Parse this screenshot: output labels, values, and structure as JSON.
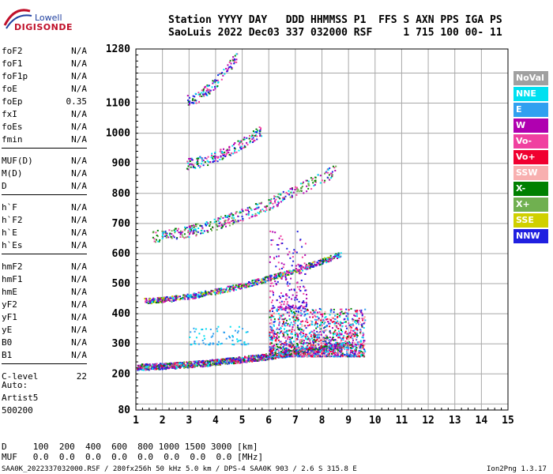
{
  "logo": {
    "top": "Lowell",
    "bottom": "DIGISONDE"
  },
  "header": {
    "line1": "Station YYYY DAY   DDD HHMMSS P1  FFS S AXN PPS IGA PS",
    "line2": "SaoLuis 2022 Dec03 337 032000 RSF     1 715 100 00- 11"
  },
  "params_group1": [
    {
      "label": "foF2",
      "value": "N/A"
    },
    {
      "label": "foF1",
      "value": "N/A"
    },
    {
      "label": "foF1p",
      "value": "N/A"
    },
    {
      "label": "foE",
      "value": "N/A"
    },
    {
      "label": "foEp",
      "value": "0.35"
    },
    {
      "label": "fxI",
      "value": "N/A"
    },
    {
      "label": "foEs",
      "value": "N/A"
    },
    {
      "label": "fmin",
      "value": "N/A"
    }
  ],
  "params_group2": [
    {
      "label": "MUF(D)",
      "value": "N/A"
    },
    {
      "label": "M(D)",
      "value": "N/A"
    },
    {
      "label": "D",
      "value": "N/A"
    }
  ],
  "params_group3": [
    {
      "label": "h`F",
      "value": "N/A"
    },
    {
      "label": "h`F2",
      "value": "N/A"
    },
    {
      "label": "h`E",
      "value": "N/A"
    },
    {
      "label": "h`Es",
      "value": "N/A"
    }
  ],
  "params_group4": [
    {
      "label": "hmF2",
      "value": "N/A"
    },
    {
      "label": "hmF1",
      "value": "N/A"
    },
    {
      "label": "hmE",
      "value": "N/A"
    },
    {
      "label": "yF2",
      "value": "N/A"
    },
    {
      "label": "yF1",
      "value": "N/A"
    },
    {
      "label": "yE",
      "value": "N/A"
    },
    {
      "label": "B0",
      "value": "N/A"
    },
    {
      "label": "B1",
      "value": "N/A"
    }
  ],
  "params_group5": [
    {
      "label": "C-level",
      "value": "22"
    }
  ],
  "auto": {
    "line1": "Auto:",
    "line2": "Artist5",
    "line3": "500200"
  },
  "legend": [
    {
      "label": "NoVal",
      "color": "#a0a0a0"
    },
    {
      "label": "NNE",
      "color": "#00e0f0"
    },
    {
      "label": "E",
      "color": "#30a0f0"
    },
    {
      "label": "W",
      "color": "#b000b0"
    },
    {
      "label": "Vo-",
      "color": "#f040a0"
    },
    {
      "label": "Vo+",
      "color": "#f00030"
    },
    {
      "label": "SSW",
      "color": "#f8b0b0"
    },
    {
      "label": "X-",
      "color": "#008000"
    },
    {
      "label": "X+",
      "color": "#70b050"
    },
    {
      "label": "SSE",
      "color": "#d0d000"
    },
    {
      "label": "NNW",
      "color": "#2020e0"
    }
  ],
  "bottom": {
    "d_line": "D     100  200  400  600  800 1000 1500 3000 [km]",
    "muf_line": "MUF   0.0  0.0  0.0  0.0  0.0  0.0  0.0  0.0 [MHz]"
  },
  "footer": {
    "left": "SAA0K_2022337032000.RSF / 280fx256h 50 kHz 5.0 km / DPS-4 SAA0K 903 / 2.6 S 315.8 E",
    "right": "Ion2Png 1.3.17"
  },
  "chart_data": {
    "type": "scatter",
    "xlim": [
      1,
      15
    ],
    "ylim": [
      80,
      1280
    ],
    "x_ticks": [
      1,
      2,
      3,
      4,
      5,
      6,
      7,
      8,
      9,
      10,
      11,
      12,
      13,
      14,
      15
    ],
    "y_ticks": [
      80,
      200,
      300,
      400,
      500,
      600,
      700,
      800,
      900,
      1000,
      1100,
      1280
    ],
    "grid": true,
    "legend_placement": "right",
    "traces": [
      {
        "f0": 1.0,
        "f1": 9.0,
        "h0": 225,
        "h1": 300,
        "count": 1500,
        "spread": 10,
        "colors": [
          "#2020e0",
          "#2020e0",
          "#b000b0",
          "#00e0f0",
          "#f040a0",
          "#f00030",
          "#008000",
          "#70b050"
        ]
      },
      {
        "f0": 1.3,
        "f1": 8.7,
        "h0": 445,
        "h1": 600,
        "count": 700,
        "spread": 9,
        "colors": [
          "#2020e0",
          "#b000b0",
          "#f040a0",
          "#d0d000",
          "#008000",
          "#00e0f0"
        ]
      },
      {
        "f0": 1.6,
        "f1": 8.5,
        "h0": 660,
        "h1": 880,
        "count": 400,
        "spread": 20,
        "colors": [
          "#2020e0",
          "#b000b0",
          "#f040a0",
          "#008000",
          "#70b050",
          "#00e0f0"
        ]
      },
      {
        "f0": 2.9,
        "f1": 5.7,
        "h0": 900,
        "h1": 1010,
        "count": 180,
        "spread": 18,
        "colors": [
          "#2020e0",
          "#b000b0",
          "#f040a0",
          "#008000",
          "#00e0f0"
        ]
      },
      {
        "f0": 2.9,
        "f1": 4.8,
        "h0": 1110,
        "h1": 1260,
        "count": 120,
        "spread": 18,
        "colors": [
          "#2020e0",
          "#b000b0",
          "#f040a0",
          "#008000",
          "#00e0f0"
        ]
      }
    ],
    "spread_clusters": [
      {
        "f0": 6.0,
        "f1": 9.6,
        "h0": 260,
        "h1": 420,
        "count": 1400,
        "colors": [
          "#f040a0",
          "#f00030",
          "#b000b0",
          "#2020e0",
          "#008000",
          "#00e0f0",
          "#30a0f0",
          "#f8b0b0"
        ]
      },
      {
        "f0": 3.0,
        "f1": 5.2,
        "h0": 300,
        "h1": 360,
        "count": 70,
        "colors": [
          "#00e0f0",
          "#30a0f0"
        ]
      },
      {
        "f0": 6.0,
        "f1": 7.4,
        "h0": 420,
        "h1": 680,
        "count": 200,
        "colors": [
          "#f040a0",
          "#b000b0",
          "#2020e0"
        ]
      }
    ]
  }
}
